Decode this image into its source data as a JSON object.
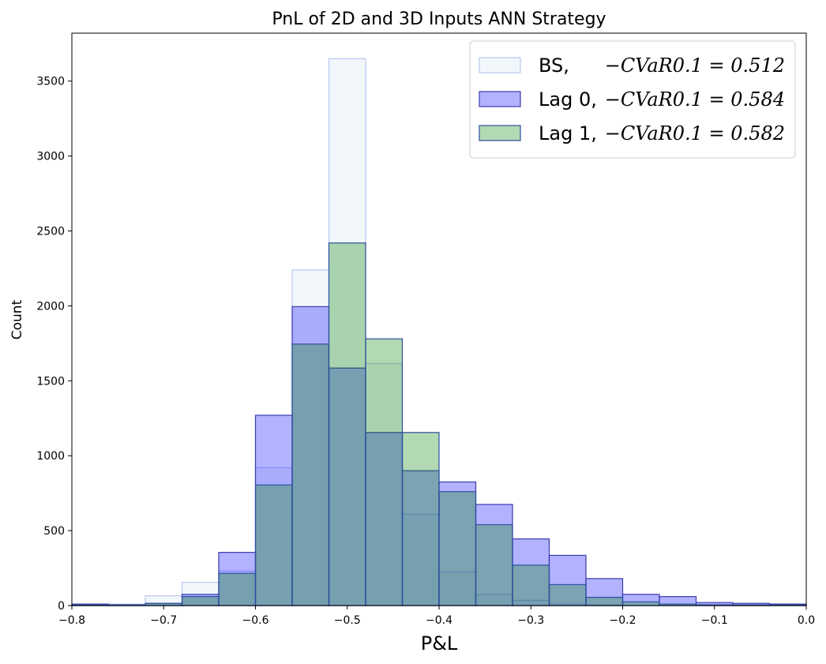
{
  "chart_data": {
    "type": "bar",
    "title": "PnL of 2D and 3D Inputs ANN Strategy",
    "xlabel": "P&L",
    "ylabel": "Count",
    "xlim": [
      -0.8,
      0.0
    ],
    "ylim": [
      0,
      3820
    ],
    "xticks": [
      -0.8,
      -0.7,
      -0.6,
      -0.5,
      -0.4,
      -0.3,
      -0.2,
      -0.1,
      0.0
    ],
    "xtick_labels": [
      "−0.8",
      "−0.7",
      "−0.6",
      "−0.5",
      "−0.4",
      "−0.3",
      "−0.2",
      "−0.1",
      "0.0"
    ],
    "yticks": [
      0,
      500,
      1000,
      1500,
      2000,
      2500,
      3000,
      3500
    ],
    "ytick_labels": [
      "0",
      "500",
      "1000",
      "1500",
      "2000",
      "2500",
      "3000",
      "3500"
    ],
    "bin_edges": [
      -0.8,
      -0.76,
      -0.72,
      -0.68,
      -0.64,
      -0.6,
      -0.56,
      -0.52,
      -0.48,
      -0.44,
      -0.4,
      -0.36,
      -0.32,
      -0.28,
      -0.24,
      -0.2,
      -0.16,
      -0.12,
      -0.08,
      -0.04,
      0.0
    ],
    "series": [
      {
        "name": "BS,",
        "metric": "−CVaR0.1 = 0.512",
        "values": [
          5,
          10,
          65,
          155,
          230,
          920,
          2240,
          3650,
          1615,
          610,
          225,
          75,
          35,
          10,
          5,
          0,
          0,
          0,
          0,
          0
        ],
        "fill": "#e6f0f7",
        "fill_opacity": 0.5,
        "edge": "#b9c8f2"
      },
      {
        "name": "Lag 0,",
        "metric": "−CVaR0.1 = 0.584",
        "values": [
          10,
          5,
          15,
          75,
          355,
          1270,
          1995,
          1585,
          1155,
          900,
          825,
          675,
          445,
          335,
          180,
          75,
          60,
          20,
          15,
          10
        ],
        "fill": "#0000ff",
        "fill_opacity": 0.3,
        "edge": "#3b3bb0"
      },
      {
        "name": "Lag 1,",
        "metric": "−CVaR0.1 = 0.582",
        "values": [
          5,
          5,
          15,
          60,
          215,
          805,
          1745,
          2420,
          1780,
          1155,
          760,
          540,
          270,
          140,
          55,
          25,
          10,
          5,
          5,
          5
        ],
        "fill": "#008000",
        "fill_opacity": 0.3,
        "edge": "#2d50a0"
      }
    ],
    "legend_position": "top-right",
    "grid": false
  }
}
